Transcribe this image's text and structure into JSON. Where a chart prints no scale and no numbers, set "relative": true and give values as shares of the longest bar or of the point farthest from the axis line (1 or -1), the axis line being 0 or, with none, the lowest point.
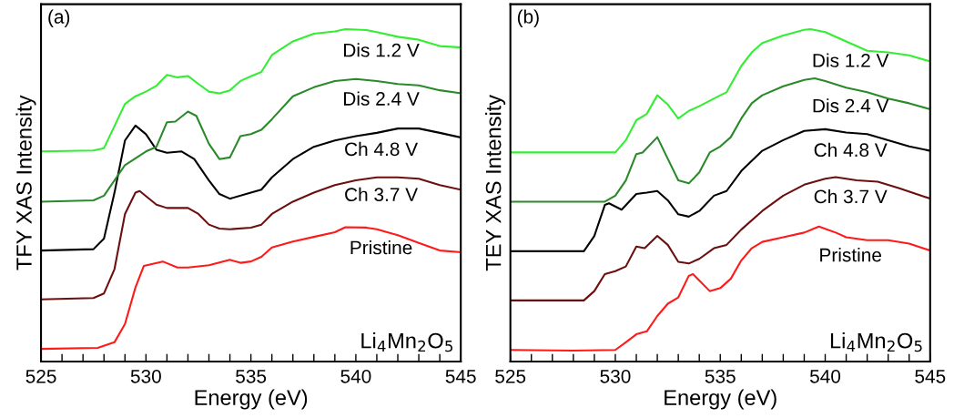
{
  "chart_data": [
    {
      "type": "line",
      "relative": true,
      "title": "(a)",
      "xlabel": "Energy (eV)",
      "ylabel": "TFY XAS Intensity",
      "xlim": [
        525,
        545
      ],
      "xticks": [
        525,
        {
          "value": 526,
          "label": null
        },
        {
          "value": 527,
          "label": null
        },
        {
          "value": 528,
          "label": null
        },
        {
          "value": 529,
          "label": null
        },
        530,
        {
          "value": 531,
          "label": null
        },
        {
          "value": 532,
          "label": null
        },
        {
          "value": 533,
          "label": null
        },
        {
          "value": 534,
          "label": null
        },
        535,
        {
          "value": 536,
          "label": null
        },
        {
          "value": 537,
          "label": null
        },
        {
          "value": 538,
          "label": null
        },
        {
          "value": 539,
          "label": null
        },
        540,
        {
          "value": 541,
          "label": null
        },
        {
          "value": 542,
          "label": null
        },
        {
          "value": 543,
          "label": null
        },
        {
          "value": 544,
          "label": null
        },
        545
      ],
      "annotations": [
        "Li$_{4}$Mn$_{2}$O$_{5}$"
      ],
      "grid": false,
      "legend": false,
      "series": [
        {
          "name": "Pristine",
          "color": "#ff1a1a",
          "x": [
            525,
            527.7,
            528.5,
            529,
            529.5,
            529.9,
            530.8,
            531.5,
            532,
            533,
            534,
            534.5,
            535,
            535.5,
            536,
            537,
            538,
            539,
            539.5,
            540.5,
            541,
            542,
            543,
            544,
            545
          ],
          "values": [
            0.038,
            0.041,
            0.058,
            0.113,
            0.223,
            0.288,
            0.301,
            0.283,
            0.283,
            0.29,
            0.306,
            0.297,
            0.301,
            0.315,
            0.343,
            0.361,
            0.375,
            0.389,
            0.404,
            0.403,
            0.398,
            0.38,
            0.357,
            0.334,
            0.329
          ]
        },
        {
          "name": "Ch 3.7 V",
          "color": "#6b0f0f",
          "x": [
            525,
            527.5,
            528,
            528.5,
            529,
            529.5,
            529.7,
            530.5,
            531,
            531.5,
            532,
            532.5,
            533,
            533.5,
            534,
            535,
            535.5,
            536,
            537,
            538,
            539,
            540,
            541,
            542,
            543,
            544,
            545
          ],
          "values": [
            0.187,
            0.191,
            0.205,
            0.278,
            0.444,
            0.508,
            0.513,
            0.472,
            0.462,
            0.462,
            0.462,
            0.444,
            0.412,
            0.4,
            0.398,
            0.403,
            0.412,
            0.444,
            0.481,
            0.508,
            0.531,
            0.545,
            0.554,
            0.554,
            0.55,
            0.531,
            0.517
          ]
        },
        {
          "name": "Ch 4.8 V",
          "color": "#000000",
          "x": [
            525,
            527.5,
            528,
            528.5,
            529,
            529.5,
            530,
            530.5,
            531,
            531.7,
            532.3,
            533,
            533.5,
            534,
            535,
            535.5,
            536,
            537,
            538,
            539,
            540,
            541,
            542,
            543,
            544,
            545
          ],
          "values": [
            0.334,
            0.338,
            0.37,
            0.508,
            0.665,
            0.71,
            0.684,
            0.637,
            0.628,
            0.632,
            0.609,
            0.545,
            0.504,
            0.49,
            0.508,
            0.517,
            0.554,
            0.609,
            0.646,
            0.665,
            0.678,
            0.688,
            0.701,
            0.701,
            0.688,
            0.674
          ]
        },
        {
          "name": "Dis 2.4 V",
          "color": "#2a8a2a",
          "x": [
            525,
            527.5,
            528,
            529,
            530,
            530.5,
            531,
            531.4,
            532,
            532.4,
            533,
            533.5,
            534,
            534.5,
            535,
            535.5,
            536,
            537,
            538,
            539,
            540,
            541,
            542,
            543,
            544,
            545
          ],
          "values": [
            0.481,
            0.485,
            0.499,
            0.591,
            0.632,
            0.646,
            0.72,
            0.722,
            0.752,
            0.739,
            0.655,
            0.609,
            0.614,
            0.678,
            0.684,
            0.697,
            0.729,
            0.798,
            0.825,
            0.844,
            0.85,
            0.844,
            0.835,
            0.831,
            0.816,
            0.807
          ]
        },
        {
          "name": "Dis 1.2 V",
          "color": "#33ee33",
          "x": [
            525,
            527.5,
            528,
            529,
            529.5,
            530,
            530.5,
            531,
            531.5,
            532,
            532.5,
            533,
            533.5,
            534,
            534.5,
            535,
            535.5,
            536,
            537,
            538,
            539,
            539.5,
            540.5,
            541,
            542,
            543,
            544,
            545
          ],
          "values": [
            0.632,
            0.635,
            0.642,
            0.775,
            0.798,
            0.812,
            0.83,
            0.862,
            0.855,
            0.859,
            0.835,
            0.812,
            0.807,
            0.816,
            0.844,
            0.858,
            0.871,
            0.922,
            0.963,
            0.986,
            0.993,
            1.0,
            0.997,
            0.991,
            0.977,
            0.968,
            0.949,
            0.945
          ]
        }
      ]
    },
    {
      "type": "line",
      "relative": true,
      "title": "(b)",
      "xlabel": "Energy (eV)",
      "ylabel": "TEY XAS Intensity",
      "xlim": [
        525,
        545
      ],
      "xticks": [
        525,
        {
          "value": 526,
          "label": null
        },
        {
          "value": 527,
          "label": null
        },
        {
          "value": 528,
          "label": null
        },
        {
          "value": 529,
          "label": null
        },
        530,
        {
          "value": 531,
          "label": null
        },
        {
          "value": 532,
          "label": null
        },
        {
          "value": 533,
          "label": null
        },
        {
          "value": 534,
          "label": null
        },
        535,
        {
          "value": 536,
          "label": null
        },
        {
          "value": 537,
          "label": null
        },
        {
          "value": 538,
          "label": null
        },
        {
          "value": 539,
          "label": null
        },
        540,
        {
          "value": 541,
          "label": null
        },
        {
          "value": 542,
          "label": null
        },
        {
          "value": 543,
          "label": null
        },
        {
          "value": 544,
          "label": null
        },
        545
      ],
      "annotations": [
        "Li$_{4}$Mn$_{2}$O$_{5}$"
      ],
      "grid": false,
      "legend": false,
      "series": [
        {
          "name": "Pristine",
          "color": "#ff1a1a",
          "x": [
            525,
            528,
            530,
            530.5,
            531,
            531.5,
            532,
            532.5,
            533,
            533.5,
            533.7,
            534,
            534.5,
            535,
            535.5,
            536,
            536.5,
            537,
            538,
            539,
            539.7,
            540.5,
            541,
            542,
            543,
            544,
            545
          ],
          "values": [
            0.035,
            0.033,
            0.035,
            0.058,
            0.082,
            0.091,
            0.137,
            0.174,
            0.193,
            0.258,
            0.263,
            0.244,
            0.212,
            0.221,
            0.249,
            0.304,
            0.341,
            0.36,
            0.374,
            0.388,
            0.406,
            0.388,
            0.374,
            0.365,
            0.365,
            0.355,
            0.334
          ]
        },
        {
          "name": "Ch 3.7 V",
          "color": "#6b0f0f",
          "x": [
            525,
            528.5,
            529,
            529.5,
            530,
            530.5,
            531,
            531.4,
            532,
            532.5,
            533,
            533.5,
            534,
            534.7,
            535.3,
            536,
            537,
            538,
            539,
            540,
            540.5,
            541.5,
            542.5,
            543.5,
            545
          ],
          "values": [
            0.184,
            0.184,
            0.212,
            0.263,
            0.272,
            0.286,
            0.346,
            0.341,
            0.378,
            0.351,
            0.3,
            0.295,
            0.309,
            0.341,
            0.351,
            0.397,
            0.453,
            0.499,
            0.532,
            0.55,
            0.555,
            0.545,
            0.541,
            0.522,
            0.49
          ]
        },
        {
          "name": "Ch 4.8 V",
          "color": "#000000",
          "x": [
            525,
            528.5,
            529,
            529.5,
            529.7,
            530.3,
            531,
            531.5,
            532,
            532.5,
            533,
            533.5,
            534,
            534.7,
            535.3,
            536,
            537,
            538,
            539,
            540,
            541,
            542,
            543,
            544,
            545
          ],
          "values": [
            0.332,
            0.332,
            0.378,
            0.471,
            0.476,
            0.457,
            0.504,
            0.508,
            0.513,
            0.485,
            0.443,
            0.436,
            0.453,
            0.499,
            0.513,
            0.573,
            0.634,
            0.666,
            0.694,
            0.699,
            0.689,
            0.684,
            0.666,
            0.647,
            0.634
          ]
        },
        {
          "name": "Dis 2.4 V",
          "color": "#2a8a2a",
          "x": [
            525,
            529.5,
            530,
            530.5,
            531,
            531.3,
            532,
            532.5,
            533,
            533.5,
            534,
            534.5,
            535,
            535.5,
            536,
            536.5,
            537,
            538,
            539,
            539.5,
            540,
            541,
            542,
            543,
            544,
            545
          ],
          "values": [
            0.481,
            0.481,
            0.499,
            0.545,
            0.624,
            0.629,
            0.675,
            0.61,
            0.545,
            0.536,
            0.569,
            0.629,
            0.647,
            0.675,
            0.731,
            0.777,
            0.801,
            0.828,
            0.847,
            0.852,
            0.844,
            0.824,
            0.81,
            0.791,
            0.777,
            0.759
          ]
        },
        {
          "name": "Dis 1.2 V",
          "color": "#33ee33",
          "x": [
            525,
            530,
            530.5,
            531,
            531.5,
            532,
            532.5,
            533,
            533.5,
            534,
            535,
            535.3,
            536,
            536.5,
            537,
            538,
            539,
            539.3,
            540,
            541,
            542,
            543,
            544,
            545
          ],
          "values": [
            0.629,
            0.629,
            0.666,
            0.726,
            0.745,
            0.801,
            0.773,
            0.731,
            0.754,
            0.768,
            0.801,
            0.81,
            0.889,
            0.93,
            0.958,
            0.981,
            0.998,
            1.0,
            0.991,
            0.963,
            0.935,
            0.93,
            0.921,
            0.903
          ]
        }
      ]
    }
  ]
}
